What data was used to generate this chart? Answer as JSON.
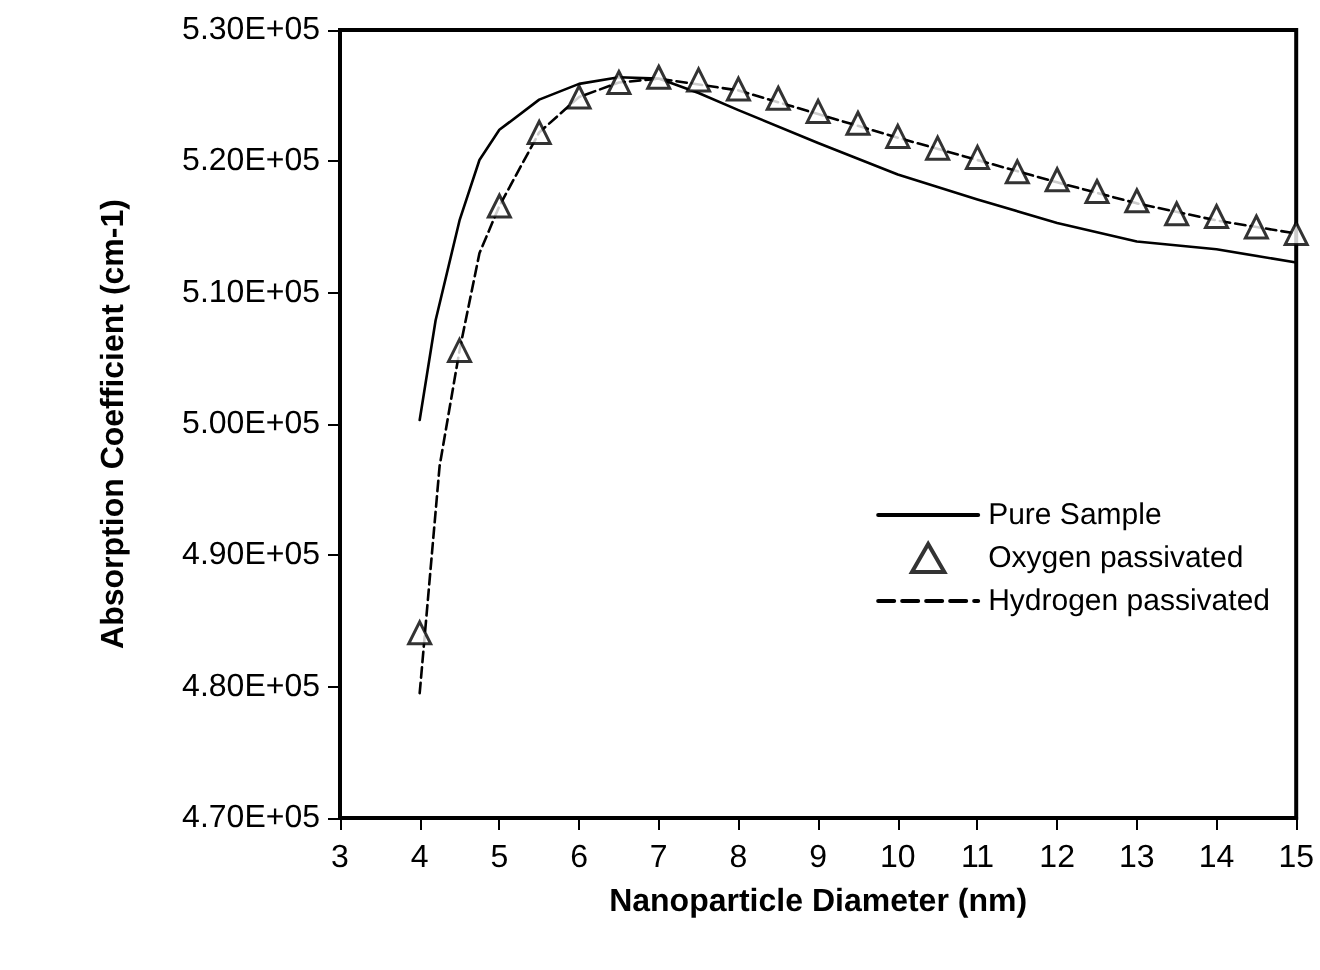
{
  "chart_data": {
    "type": "line",
    "xlabel": "Nanoparticle Diameter (nm)",
    "ylabel": "Absorption Coefficient (cm-1)",
    "xlim": [
      3,
      15
    ],
    "xticks": [
      3,
      4,
      5,
      6,
      7,
      8,
      9,
      10,
      11,
      12,
      13,
      14,
      15
    ],
    "ylim": [
      470000,
      530000
    ],
    "yticks": [
      {
        "value": 470000,
        "label": "4.70E+05"
      },
      {
        "value": 480000,
        "label": "4.80E+05"
      },
      {
        "value": 490000,
        "label": "4.90E+05"
      },
      {
        "value": 500000,
        "label": "5.00E+05"
      },
      {
        "value": 510000,
        "label": "5.10E+05"
      },
      {
        "value": 520000,
        "label": "5.20E+05"
      },
      {
        "value": 530000,
        "label": "5.30E+05"
      }
    ],
    "grid": false,
    "legend": "right",
    "series": [
      {
        "name": "Pure Sample",
        "color": "#000000",
        "line_style": "solid",
        "marker": "none",
        "x": [
          4,
          4.2,
          4.5,
          4.75,
          5,
          5.5,
          6,
          6.5,
          7,
          7.5,
          8,
          9,
          10,
          11,
          12,
          13,
          14,
          15
        ],
        "values": [
          500300,
          507900,
          515500,
          520100,
          522400,
          524700,
          525900,
          526400,
          526300,
          525200,
          523900,
          521400,
          519000,
          517100,
          515300,
          513900,
          513300,
          512300
        ]
      },
      {
        "name": "Oxygen passivated",
        "type": "scatter",
        "color": "#000000",
        "marker": "triangle",
        "x": [
          4,
          4.5,
          5,
          5.5,
          6,
          6.5,
          7,
          7.5,
          8,
          8.5,
          9,
          9.5,
          10,
          10.5,
          11,
          11.5,
          12,
          12.5,
          13,
          13.5,
          14,
          14.5,
          15
        ],
        "values": [
          484100,
          505600,
          516600,
          522200,
          524900,
          526000,
          526400,
          526200,
          525500,
          524800,
          523800,
          522900,
          521900,
          521000,
          520300,
          519200,
          518600,
          517700,
          517000,
          516000,
          515800,
          515000,
          514500
        ]
      },
      {
        "name": "Hydrogen passivated",
        "color": "#000000",
        "line_style": "dashed",
        "marker": "none",
        "x": [
          4,
          4.25,
          4.5,
          4.75,
          5,
          5.5,
          6,
          6.5,
          7,
          8,
          9,
          10,
          11,
          12,
          13,
          14,
          15
        ],
        "values": [
          479500,
          496800,
          505600,
          513000,
          516600,
          522200,
          524900,
          526000,
          526300,
          525400,
          523600,
          521800,
          520100,
          518400,
          516800,
          515500,
          514500
        ]
      }
    ]
  }
}
